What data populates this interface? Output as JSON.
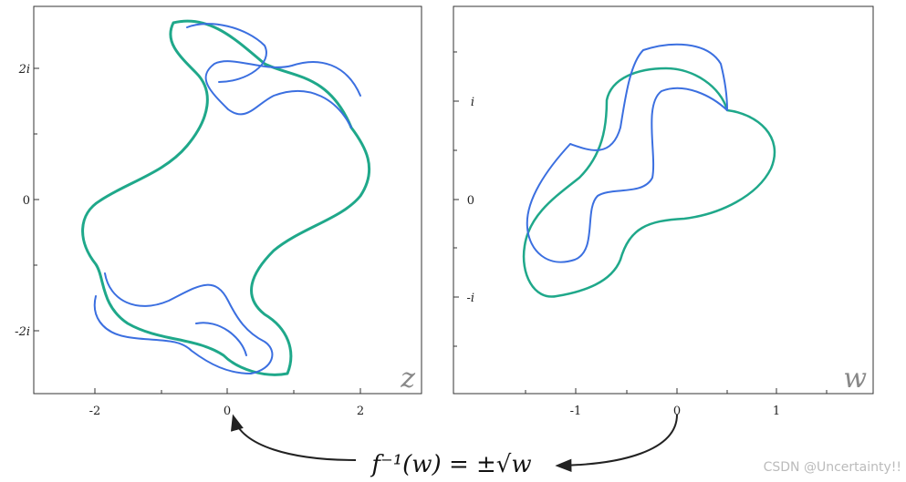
{
  "panels": [
    {
      "label": "z",
      "xticks": [
        "-2",
        "0",
        "2"
      ],
      "yticks": [
        "2i",
        "0",
        "-2i"
      ]
    },
    {
      "label": "w",
      "xticks": [
        "-1",
        "0",
        "1"
      ],
      "yticks": [
        "i",
        "0",
        "-i"
      ]
    }
  ],
  "formula": "f⁻¹(w) = ±√w",
  "watermark": "CSDN @Uncertainty!!"
}
